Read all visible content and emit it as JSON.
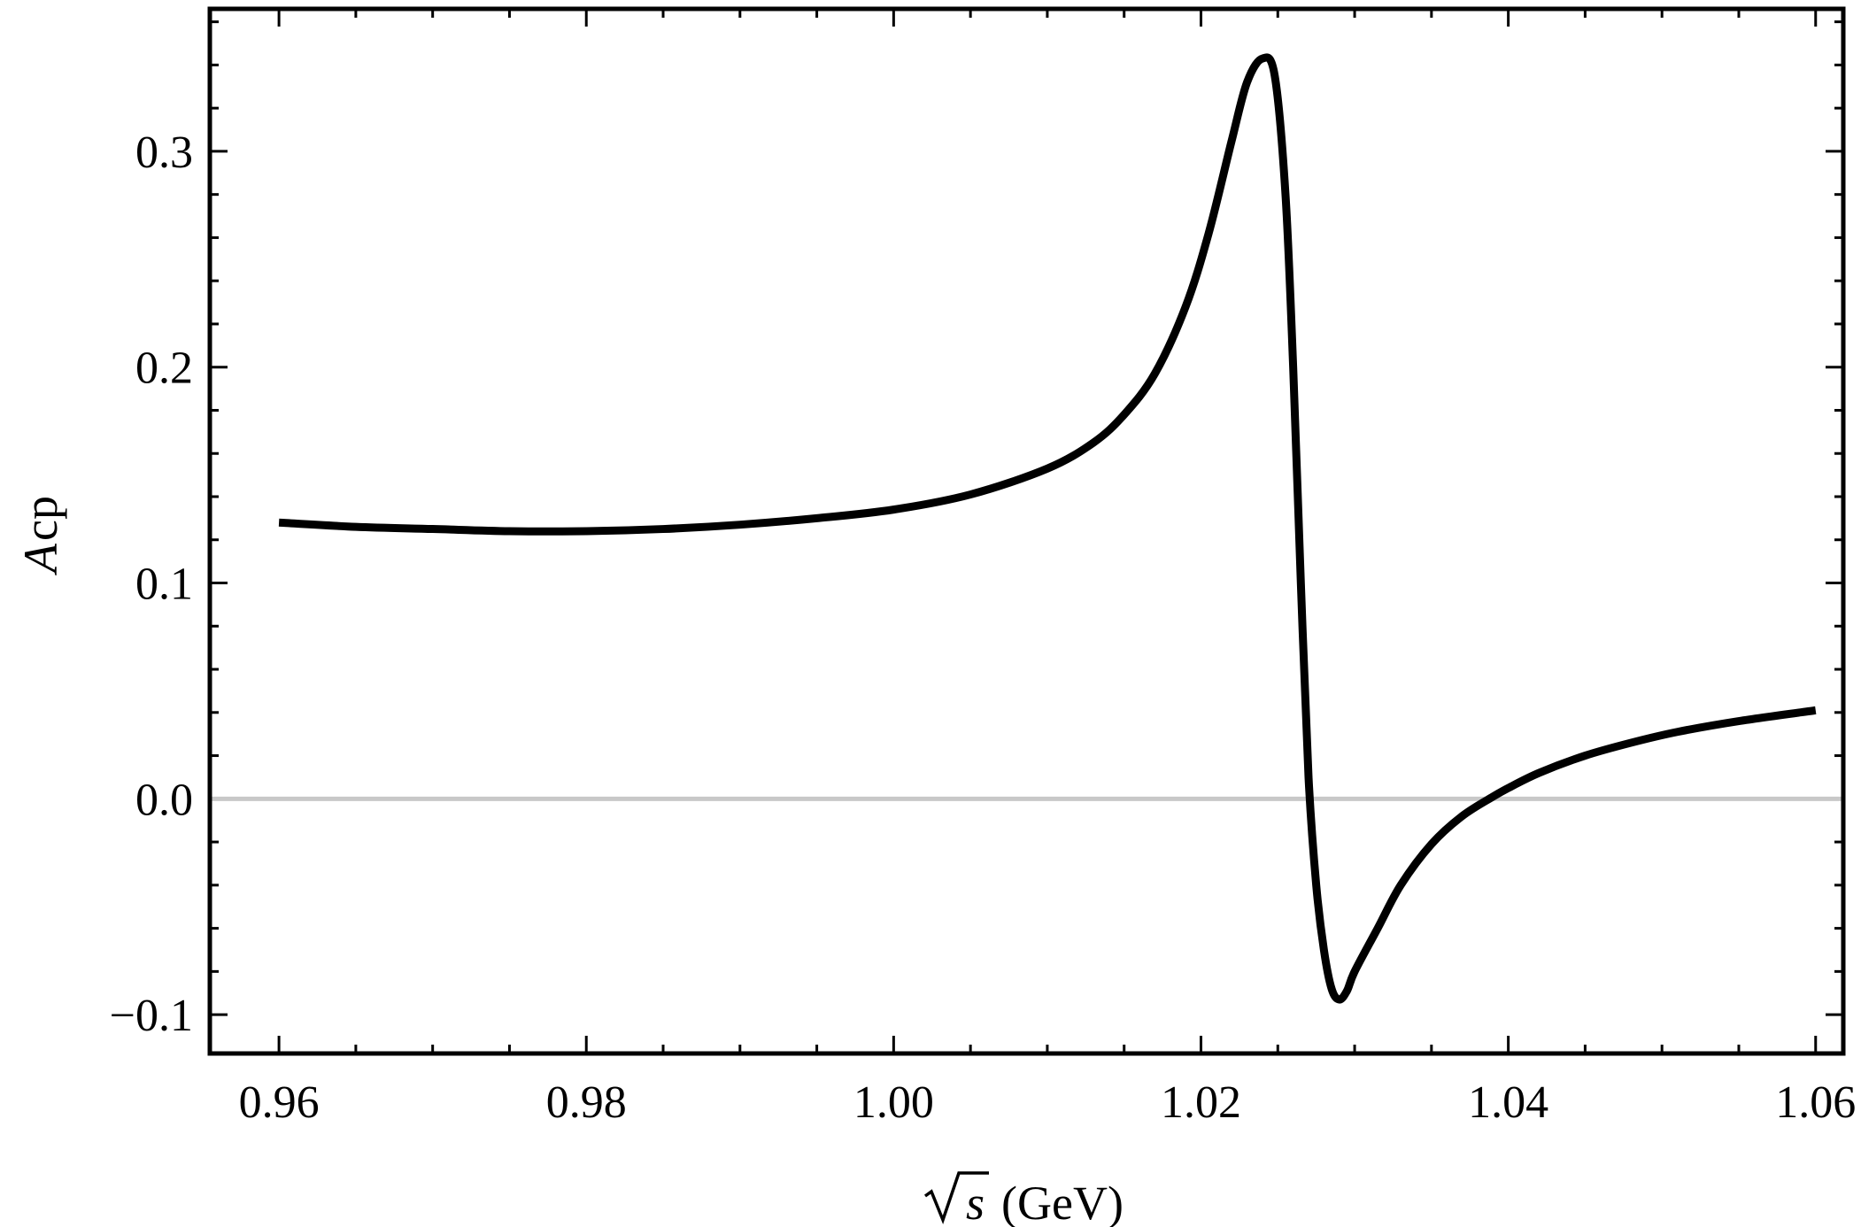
{
  "chart_data": {
    "type": "line",
    "title": "",
    "xlabel": "√s (GeV)",
    "xlabel_parts": {
      "symbol": "s",
      "unit": "(GeV)"
    },
    "ylabel": "Acp",
    "ylabel_parts": {
      "main": "A",
      "sub": "cp"
    },
    "xlim": [
      0.9555,
      1.0618
    ],
    "ylim": [
      -0.118,
      0.366
    ],
    "grid": false,
    "legend": "none",
    "x_ticks": [
      {
        "value": 0.96,
        "label": "0.96"
      },
      {
        "value": 0.98,
        "label": "0.98"
      },
      {
        "value": 1.0,
        "label": "1.00"
      },
      {
        "value": 1.02,
        "label": "1.02"
      },
      {
        "value": 1.04,
        "label": "1.04"
      },
      {
        "value": 1.06,
        "label": "1.06"
      }
    ],
    "x_minor_step": 0.005,
    "y_ticks": [
      {
        "value": -0.1,
        "label": "−0.1"
      },
      {
        "value": 0.0,
        "label": "0.0"
      },
      {
        "value": 0.1,
        "label": "0.1"
      },
      {
        "value": 0.2,
        "label": "0.2"
      },
      {
        "value": 0.3,
        "label": "0.3"
      }
    ],
    "y_minor_step": 0.02,
    "reference_line": {
      "y": 0.0,
      "color": "#c8c8c8"
    },
    "series": [
      {
        "color": "#000000",
        "x": [
          0.96,
          0.965,
          0.97,
          0.975,
          0.98,
          0.985,
          0.99,
          0.995,
          1.0,
          1.005,
          1.01,
          1.013,
          1.015,
          1.017,
          1.019,
          1.0205,
          1.022,
          1.023,
          1.024,
          1.0248,
          1.0255,
          1.026,
          1.0265,
          1.027,
          1.0275,
          1.028,
          1.0285,
          1.029,
          1.0295,
          1.03,
          1.0315,
          1.033,
          1.035,
          1.037,
          1.039,
          1.04,
          1.042,
          1.045,
          1.048,
          1.051,
          1.055,
          1.06
        ],
        "y": [
          0.128,
          0.126,
          0.125,
          0.124,
          0.124,
          0.125,
          0.127,
          0.13,
          0.134,
          0.141,
          0.153,
          0.165,
          0.178,
          0.197,
          0.228,
          0.262,
          0.305,
          0.332,
          0.343,
          0.335,
          0.28,
          0.2,
          0.1,
          0.01,
          -0.04,
          -0.07,
          -0.088,
          -0.093,
          -0.089,
          -0.08,
          -0.06,
          -0.04,
          -0.021,
          -0.008,
          0.001,
          0.005,
          0.012,
          0.02,
          0.026,
          0.031,
          0.036,
          0.041
        ]
      }
    ]
  }
}
